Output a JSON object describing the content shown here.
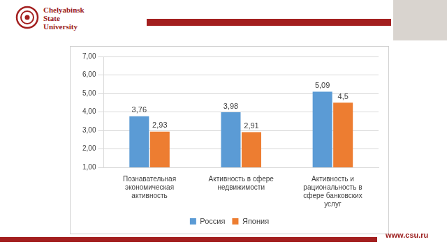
{
  "slide": {
    "logo_text": "Chelyabinsk State University",
    "url": "www.csu.ru"
  },
  "chart_data": {
    "type": "bar",
    "categories": [
      [
        "Познавательная",
        "экономическая",
        "активность"
      ],
      [
        "Активность в сфере",
        "недвижимости"
      ],
      [
        "Активность и",
        "рациональность в",
        "сфере банковских",
        "услуг"
      ]
    ],
    "series": [
      {
        "name": "Россия",
        "color": "#5b9bd5",
        "values": [
          3.76,
          3.98,
          5.09
        ],
        "value_labels": [
          "3,76",
          "3,98",
          "5,09"
        ]
      },
      {
        "name": "Япония",
        "color": "#ed7d31",
        "values": [
          2.93,
          2.91,
          4.5
        ],
        "value_labels": [
          "2,93",
          "2,91",
          "4,5"
        ]
      }
    ],
    "ylim": [
      1,
      7
    ],
    "yticks": [
      {
        "value": 1,
        "label": "1,00"
      },
      {
        "value": 2,
        "label": "2,00"
      },
      {
        "value": 3,
        "label": "3,00"
      },
      {
        "value": 4,
        "label": "4,00"
      },
      {
        "value": 5,
        "label": "5,00"
      },
      {
        "value": 6,
        "label": "6,00"
      },
      {
        "value": 7,
        "label": "7,00"
      }
    ],
    "grid": true,
    "legend": "bottom",
    "data_labels": true
  }
}
